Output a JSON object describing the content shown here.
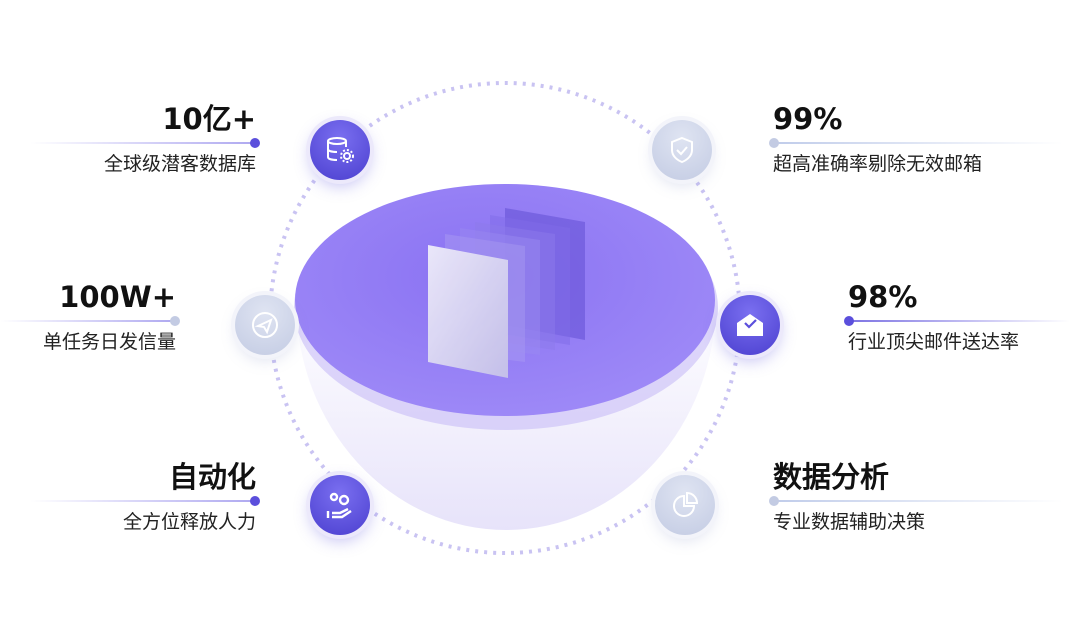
{
  "colors": {
    "accent": "#5b4fdc",
    "top": "#9a84f7",
    "muted": "#c3cbe3"
  },
  "features": [
    {
      "title": "10亿+",
      "subtitle": "全球级潜客数据库",
      "icon": "database-gear-icon"
    },
    {
      "title": "100W+",
      "subtitle": "单任务日发信量",
      "icon": "paper-plane-icon"
    },
    {
      "title": "自动化",
      "subtitle": "全方位释放人力",
      "icon": "hand-gears-icon"
    },
    {
      "title": "99%",
      "subtitle": "超高准确率剔除无效邮箱",
      "icon": "shield-check-icon"
    },
    {
      "title": "98%",
      "subtitle": "行业顶尖邮件送达率",
      "icon": "mail-check-icon"
    },
    {
      "title": "数据分析",
      "subtitle": "专业数据辅助决策",
      "icon": "pie-chart-icon"
    }
  ]
}
